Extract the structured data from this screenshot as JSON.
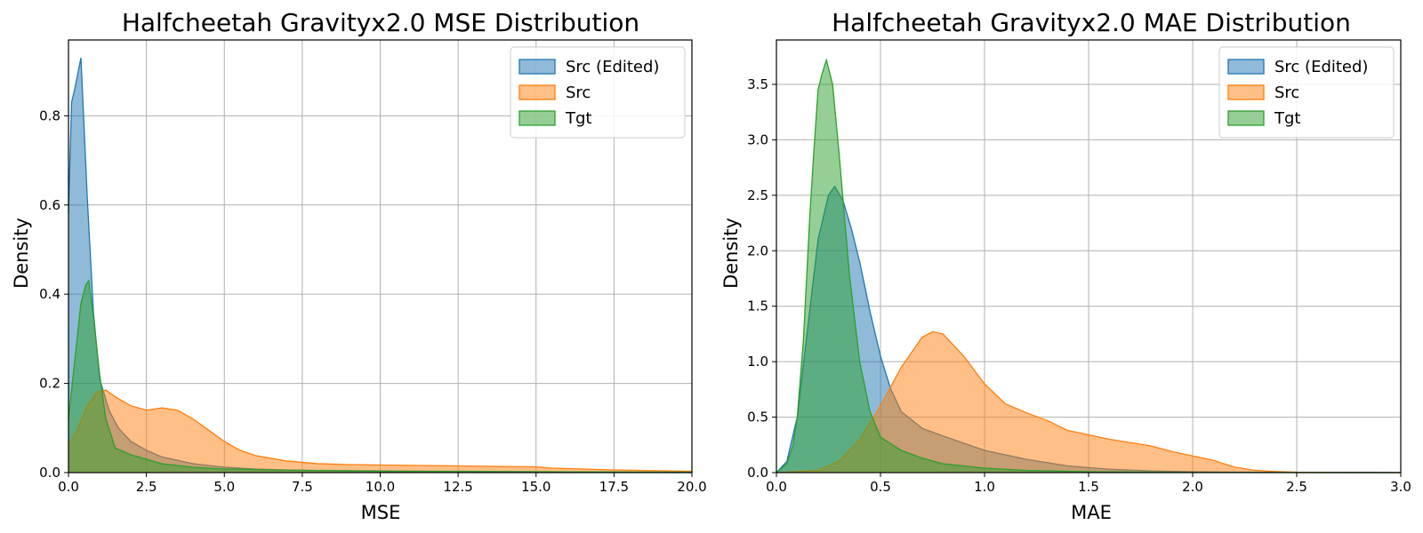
{
  "chart_data": [
    {
      "type": "area",
      "title": "Halfcheetah Gravityx2.0 MSE Distribution",
      "xlabel": "MSE",
      "ylabel": "Density",
      "xlim": [
        0,
        20
      ],
      "ylim": [
        0,
        0.97
      ],
      "xticks": [
        "0.0",
        "2.5",
        "5.0",
        "7.5",
        "10.0",
        "12.5",
        "15.0",
        "17.5",
        "20.0"
      ],
      "yticks": [
        "0.0",
        "0.2",
        "0.4",
        "0.6",
        "0.8"
      ],
      "grid": true,
      "legend_position": "top-right",
      "series": [
        {
          "name": "Src (Edited)",
          "color": "#1f77b4",
          "x": [
            0,
            0.1,
            0.2,
            0.4,
            0.6,
            0.8,
            1.0,
            1.3,
            1.6,
            2.0,
            2.5,
            3.0,
            4.0,
            5.0,
            6.0,
            7.0,
            8.0,
            10.0,
            12.0,
            15.0,
            17.5,
            20.0
          ],
          "y": [
            0.58,
            0.83,
            0.86,
            0.93,
            0.62,
            0.36,
            0.21,
            0.14,
            0.1,
            0.07,
            0.05,
            0.035,
            0.02,
            0.012,
            0.008,
            0.006,
            0.005,
            0.004,
            0.003,
            0.002,
            0.001,
            0.0
          ]
        },
        {
          "name": "Src",
          "color": "#ff7f0e",
          "x": [
            0,
            0.3,
            0.6,
            0.9,
            1.2,
            1.5,
            2.0,
            2.5,
            3.0,
            3.5,
            4.0,
            4.5,
            5.0,
            5.5,
            6.0,
            7.0,
            8.0,
            9.0,
            10.0,
            12.5,
            15.0,
            15.5,
            17.5,
            20.0
          ],
          "y": [
            0.06,
            0.1,
            0.15,
            0.18,
            0.185,
            0.17,
            0.15,
            0.14,
            0.145,
            0.14,
            0.12,
            0.095,
            0.07,
            0.05,
            0.038,
            0.026,
            0.02,
            0.018,
            0.017,
            0.015,
            0.013,
            0.01,
            0.006,
            0.003
          ]
        },
        {
          "name": "Tgt",
          "color": "#2ca02c",
          "x": [
            0,
            0.2,
            0.4,
            0.55,
            0.65,
            0.8,
            1.0,
            1.2,
            1.5,
            2.0,
            2.5,
            3.0,
            4.0,
            5.0,
            7.5,
            10.0,
            15.0,
            20.0
          ],
          "y": [
            0.12,
            0.25,
            0.38,
            0.42,
            0.43,
            0.35,
            0.22,
            0.12,
            0.055,
            0.04,
            0.03,
            0.02,
            0.012,
            0.008,
            0.005,
            0.003,
            0.002,
            0.001
          ]
        }
      ]
    },
    {
      "type": "area",
      "title": "Halfcheetah Gravityx2.0 MAE Distribution",
      "xlabel": "MAE",
      "ylabel": "Density",
      "xlim": [
        0,
        3
      ],
      "ylim": [
        0,
        3.9
      ],
      "xticks": [
        "0.0",
        "0.5",
        "1.0",
        "1.5",
        "2.0",
        "2.5",
        "3.0"
      ],
      "yticks": [
        "0.0",
        "0.5",
        "1.0",
        "1.5",
        "2.0",
        "2.5",
        "3.0",
        "3.5"
      ],
      "grid": true,
      "legend_position": "top-right",
      "series": [
        {
          "name": "Src (Edited)",
          "color": "#1f77b4",
          "x": [
            0,
            0.05,
            0.1,
            0.15,
            0.2,
            0.25,
            0.28,
            0.32,
            0.36,
            0.4,
            0.45,
            0.5,
            0.55,
            0.6,
            0.7,
            0.8,
            1.0,
            1.2,
            1.4,
            1.6,
            1.8,
            2.0,
            2.2,
            2.5,
            3.0
          ],
          "y": [
            0,
            0.1,
            0.5,
            1.3,
            2.1,
            2.5,
            2.58,
            2.45,
            2.2,
            1.9,
            1.45,
            1.05,
            0.75,
            0.55,
            0.4,
            0.33,
            0.2,
            0.12,
            0.06,
            0.03,
            0.015,
            0.008,
            0.004,
            0.001,
            0
          ]
        },
        {
          "name": "Src",
          "color": "#ff7f0e",
          "x": [
            0,
            0.2,
            0.3,
            0.4,
            0.5,
            0.6,
            0.7,
            0.75,
            0.8,
            0.9,
            1.0,
            1.1,
            1.2,
            1.3,
            1.4,
            1.5,
            1.6,
            1.7,
            1.8,
            1.9,
            2.0,
            2.1,
            2.2,
            2.3,
            2.4,
            2.5,
            2.7,
            3.0
          ],
          "y": [
            0,
            0.02,
            0.1,
            0.3,
            0.6,
            0.95,
            1.22,
            1.27,
            1.25,
            1.05,
            0.8,
            0.62,
            0.54,
            0.47,
            0.38,
            0.34,
            0.3,
            0.27,
            0.24,
            0.19,
            0.15,
            0.11,
            0.05,
            0.02,
            0.01,
            0.004,
            0.001,
            0
          ]
        },
        {
          "name": "Tgt",
          "color": "#2ca02c",
          "x": [
            0,
            0.05,
            0.08,
            0.1,
            0.13,
            0.16,
            0.18,
            0.2,
            0.22,
            0.24,
            0.27,
            0.3,
            0.35,
            0.4,
            0.45,
            0.5,
            0.6,
            0.7,
            0.8,
            1.0,
            1.2,
            1.5,
            2.0,
            3.0
          ],
          "y": [
            0,
            0.08,
            0.25,
            0.5,
            1.2,
            2.3,
            2.9,
            3.45,
            3.6,
            3.72,
            3.5,
            2.9,
            1.8,
            1.0,
            0.55,
            0.32,
            0.2,
            0.13,
            0.08,
            0.04,
            0.02,
            0.008,
            0.002,
            0
          ]
        }
      ]
    }
  ]
}
